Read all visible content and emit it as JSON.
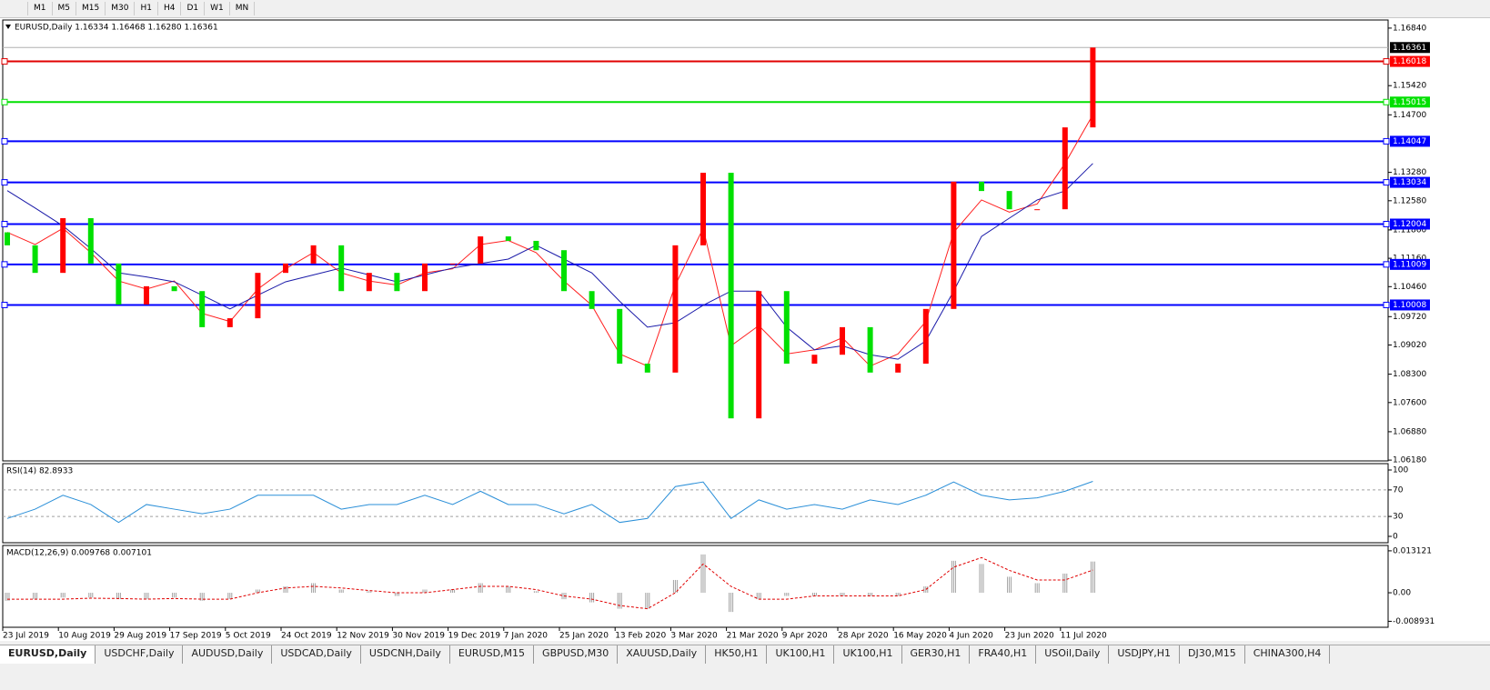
{
  "toolbar": {
    "timeframes": [
      "M1",
      "M5",
      "M15",
      "M30",
      "H1",
      "H4",
      "D1",
      "W1",
      "MN"
    ]
  },
  "chart_data": [
    {
      "type": "candlestick",
      "title": "EURUSD,Daily  1.16334 1.16468 1.16280 1.16361",
      "x": [
        "23 Jul 2019",
        null,
        "10 Aug 2019",
        null,
        "29 Aug 2019",
        null,
        "17 Sep 2019",
        null,
        "5 Oct 2019",
        null,
        "24 Oct 2019",
        null,
        "12 Nov 2019",
        null,
        "30 Nov 2019",
        null,
        "19 Dec 2019",
        null,
        "7 Jan 2020",
        null,
        "25 Jan 2020",
        null,
        "13 Feb 2020",
        null,
        "3 Mar 2020",
        null,
        "21 Mar 2020",
        null,
        "9 Apr 2020",
        null,
        "28 Apr 2020",
        null,
        "16 May 2020",
        null,
        "4 Jun 2020",
        null,
        "23 Jun 2020",
        null,
        "11 Jul 2020",
        null
      ],
      "open": [
        1.118,
        1.1148,
        1.108,
        1.1215,
        1.1103,
        1.1002,
        1.1047,
        1.1035,
        1.0946,
        1.0968,
        1.108,
        1.1103,
        1.1148,
        1.1035,
        1.108,
        1.1035,
        1.1103,
        1.1103,
        1.117,
        1.1159,
        1.1136,
        1.1035,
        1.0991,
        1.0856,
        1.0834,
        1.1148,
        1.1327,
        1.0721,
        1.1035,
        1.0856,
        1.0878,
        1.0946,
        1.0834,
        1.0856,
        1.0991,
        1.1305,
        1.1282,
        1.1237,
        1.1237,
        1.1439
      ],
      "close": [
        1.1148,
        1.108,
        1.1215,
        1.1103,
        1.1002,
        1.1047,
        1.1035,
        1.0946,
        1.0968,
        1.108,
        1.1103,
        1.1148,
        1.1035,
        1.108,
        1.1035,
        1.1103,
        1.1103,
        1.117,
        1.1159,
        1.1136,
        1.1035,
        1.0991,
        1.0856,
        1.0834,
        1.1148,
        1.1327,
        1.0721,
        1.1035,
        1.0856,
        1.0878,
        1.0946,
        1.0834,
        1.0856,
        1.0991,
        1.1305,
        1.1282,
        1.1237,
        1.1237,
        1.1439,
        1.1636
      ],
      "up_color": "#ff0000",
      "down_color": "#00e000",
      "series": [
        {
          "color": "#ff2020",
          "values": [
            1.118,
            1.115,
            1.119,
            1.113,
            1.106,
            1.104,
            1.106,
            1.098,
            1.096,
            1.104,
            1.109,
            1.113,
            1.108,
            1.106,
            1.105,
            1.108,
            1.109,
            1.115,
            1.116,
            1.113,
            1.106,
            1.1,
            1.088,
            1.085,
            1.105,
            1.119,
            1.09,
            1.095,
            1.088,
            1.089,
            1.092,
            1.085,
            1.088,
            1.096,
            1.118,
            1.126,
            1.123,
            1.125,
            1.135,
            1.147
          ]
        },
        {
          "color": "#1a1aa8",
          "values": [
            1.1283,
            1.124,
            1.1196,
            1.114,
            1.108,
            1.107,
            1.1058,
            1.1025,
            1.0991,
            1.1025,
            1.1058,
            1.1075,
            1.1092,
            1.1075,
            1.1058,
            1.1075,
            1.1092,
            1.1103,
            1.1114,
            1.1148,
            1.1114,
            1.108,
            1.101,
            1.0946,
            1.0957,
            1.1,
            1.1035,
            1.1035,
            1.0946,
            1.089,
            1.09,
            1.0878,
            1.0867,
            1.0912,
            1.1035,
            1.117,
            1.1215,
            1.126,
            1.1282,
            1.135
          ]
        }
      ],
      "ylim": [
        1.0616,
        1.1704
      ],
      "yticks": [
        {
          "value": 1.1684,
          "label": "1.16840"
        },
        {
          "value": 1.1542,
          "label": "1.15420"
        },
        {
          "value": 1.147,
          "label": "1.14700"
        },
        {
          "value": 1.1328,
          "label": "1.13280"
        },
        {
          "value": 1.1258,
          "label": "1.12580"
        },
        {
          "value": 1.1186,
          "label": "1.11860"
        },
        {
          "value": 1.1116,
          "label": "1.11160"
        },
        {
          "value": 1.1046,
          "label": "1.10460"
        },
        {
          "value": 1.0972,
          "label": "1.09720"
        },
        {
          "value": 1.0902,
          "label": "1.09020"
        },
        {
          "value": 1.083,
          "label": "1.08300"
        },
        {
          "value": 1.076,
          "label": "1.07600"
        },
        {
          "value": 1.0688,
          "label": "1.06880"
        },
        {
          "value": 1.0618,
          "label": "1.06180"
        }
      ],
      "levels": [
        {
          "value": 1.16361,
          "label": "1.16361",
          "color": "#000000",
          "line_color": "#b0b0b0"
        },
        {
          "value": 1.16018,
          "label": "1.16018",
          "color": "#ff0000",
          "line_color": "#e00000"
        },
        {
          "value": 1.15015,
          "label": "1.15015",
          "color": "#00e000",
          "line_color": "#00e000"
        },
        {
          "value": 1.14047,
          "label": "1.14047",
          "color": "#0000ff",
          "line_color": "#0000ff"
        },
        {
          "value": 1.13034,
          "label": "1.13034",
          "color": "#0000ff",
          "line_color": "#0000ff"
        },
        {
          "value": 1.12004,
          "label": "1.12004",
          "color": "#0000ff",
          "line_color": "#0000ff"
        },
        {
          "value": 1.11009,
          "label": "1.11009",
          "color": "#0000ff",
          "line_color": "#0000ff"
        },
        {
          "value": 1.10008,
          "label": "1.10008",
          "color": "#0000ff",
          "line_color": "#0000ff"
        }
      ]
    },
    {
      "type": "line",
      "title": "RSI(14) 82.8933",
      "values": [
        27,
        41,
        62,
        48,
        21,
        48,
        41,
        34,
        41,
        62,
        62,
        62,
        41,
        48,
        48,
        62,
        48,
        68,
        48,
        48,
        34,
        48,
        21,
        27,
        75,
        82,
        27,
        55,
        41,
        48,
        41,
        55,
        48,
        62,
        82,
        62,
        55,
        58,
        68,
        82.8933
      ],
      "color": "#2a8fd8",
      "ylim": [
        -9.6,
        109.6
      ],
      "yticks": [
        100,
        70,
        30,
        0
      ],
      "levels": [
        70,
        30
      ]
    },
    {
      "type": "histogram",
      "title": "MACD(12,26,9) 0.009768 0.007101",
      "values": [
        -0.0025,
        -0.002,
        -0.0015,
        -0.0015,
        -0.002,
        -0.002,
        -0.0015,
        -0.0025,
        -0.002,
        0.001,
        0.002,
        0.003,
        0.001,
        0.0005,
        -0.001,
        0.001,
        0.001,
        0.003,
        0.002,
        0.0005,
        -0.002,
        -0.003,
        -0.005,
        -0.005,
        0.004,
        0.012,
        -0.006,
        -0.002,
        -0.001,
        -0.001,
        -0.001,
        -0.001,
        -0.001,
        0.002,
        0.01,
        0.009,
        0.005,
        0.003,
        0.006,
        0.009768
      ],
      "color": "#a0a0a0",
      "signal": {
        "color": "#e00000",
        "values": [
          -0.002,
          -0.002,
          -0.002,
          -0.0017,
          -0.0018,
          -0.002,
          -0.0018,
          -0.002,
          -0.002,
          0,
          0.0015,
          0.002,
          0.0015,
          0.0007,
          0,
          0,
          0.001,
          0.002,
          0.002,
          0.001,
          -0.001,
          -0.002,
          -0.004,
          -0.005,
          0,
          0.009,
          0.002,
          -0.002,
          -0.002,
          -0.001,
          -0.001,
          -0.001,
          -0.001,
          0.001,
          0.008,
          0.011,
          0.007,
          0.004,
          0.004,
          0.007101
        ]
      },
      "ylim": [
        -0.0108,
        0.0148
      ],
      "yticks": [
        0.013121,
        {
          "value": 0,
          "label": "0.00"
        },
        -0.008931
      ]
    }
  ],
  "tabs": [
    "EURUSD,Daily",
    "USDCHF,Daily",
    "AUDUSD,Daily",
    "USDCAD,Daily",
    "USDCNH,Daily",
    "EURUSD,M15",
    "GBPUSD,M30",
    "XAUUSD,Daily",
    "HK50,H1",
    "UK100,H1",
    "UK100,H1",
    "GER30,H1",
    "FRA40,H1",
    "USOil,Daily",
    "USDJPY,H1",
    "DJ30,M15",
    "CHINA300,H4"
  ]
}
